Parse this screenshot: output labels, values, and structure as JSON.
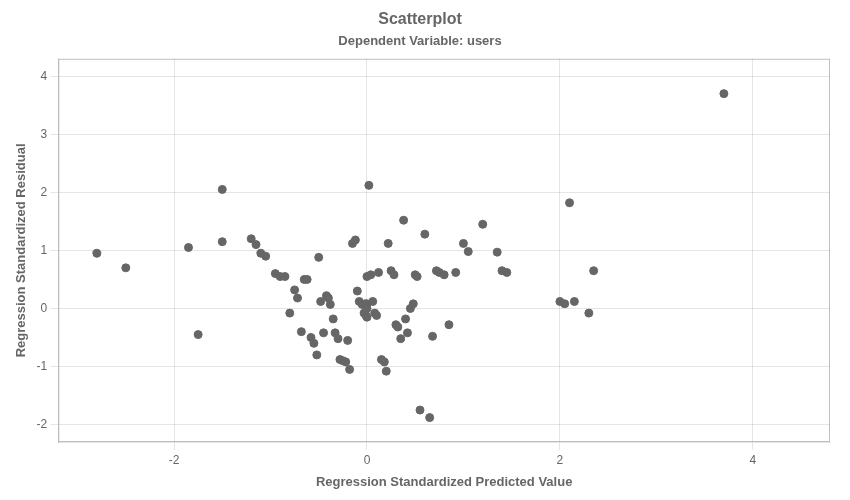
{
  "chart_data": {
    "type": "scatter",
    "title": "Scatterplot",
    "subtitle": "Dependent Variable: users",
    "xlabel": "Regression Standardized Predicted Value",
    "ylabel": "Regression Standardized Residual",
    "xlim": [
      -3.2,
      4.8
    ],
    "ylim": [
      -2.3,
      4.3
    ],
    "xticks": [
      -2,
      0,
      2,
      4
    ],
    "yticks": [
      -2,
      -1,
      0,
      1,
      2,
      3,
      4
    ],
    "color": "#666666",
    "grid": true,
    "x": [
      -2.8,
      -2.5,
      -1.85,
      -1.75,
      -1.5,
      -1.5,
      -1.2,
      -1.15,
      -1.1,
      -1.05,
      -0.95,
      -0.9,
      -0.85,
      -0.8,
      -0.75,
      -0.72,
      -0.68,
      -0.65,
      -0.62,
      -0.58,
      -0.55,
      -0.52,
      -0.5,
      -0.48,
      -0.45,
      -0.42,
      -0.4,
      -0.38,
      -0.35,
      -0.33,
      -0.3,
      -0.28,
      -0.25,
      -0.22,
      -0.2,
      -0.18,
      -0.15,
      -0.12,
      -0.1,
      -0.08,
      -0.05,
      -0.03,
      -0.02,
      -0.01,
      0.0,
      0.0,
      0.0,
      0.0,
      0.02,
      0.04,
      0.06,
      0.08,
      0.1,
      0.12,
      0.15,
      0.18,
      0.2,
      0.22,
      0.25,
      0.28,
      0.3,
      0.32,
      0.35,
      0.38,
      0.4,
      0.42,
      0.45,
      0.48,
      0.5,
      0.52,
      0.55,
      0.6,
      0.65,
      0.68,
      0.72,
      0.75,
      0.8,
      0.85,
      0.92,
      1.0,
      1.05,
      1.2,
      1.35,
      1.4,
      1.45,
      2.0,
      2.05,
      2.1,
      2.15,
      2.3,
      2.35,
      3.7
    ],
    "y": [
      0.95,
      0.7,
      1.05,
      -0.45,
      2.05,
      1.15,
      1.2,
      1.1,
      0.95,
      0.9,
      0.6,
      0.55,
      0.55,
      -0.08,
      0.32,
      0.18,
      -0.4,
      0.5,
      0.5,
      -0.5,
      -0.6,
      -0.8,
      0.88,
      0.12,
      -0.42,
      0.22,
      0.18,
      0.07,
      -0.18,
      -0.42,
      -0.52,
      -0.88,
      -0.9,
      -0.92,
      -0.55,
      -1.05,
      1.12,
      1.18,
      0.3,
      0.12,
      0.07,
      -0.08,
      0.08,
      -0.12,
      0.08,
      0.0,
      -0.15,
      0.55,
      2.12,
      0.58,
      0.12,
      -0.08,
      -0.12,
      0.62,
      -0.88,
      -0.92,
      -1.08,
      1.12,
      0.65,
      0.58,
      -0.28,
      -0.32,
      -0.52,
      1.52,
      -0.18,
      -0.42,
      0.0,
      0.08,
      0.58,
      0.55,
      -1.75,
      1.28,
      -1.88,
      -0.48,
      0.65,
      0.62,
      0.58,
      -0.28,
      0.62,
      1.12,
      0.98,
      1.45,
      0.97,
      0.65,
      0.62,
      0.12,
      0.08,
      1.82,
      0.12,
      -0.08,
      0.65,
      3.7
    ]
  }
}
